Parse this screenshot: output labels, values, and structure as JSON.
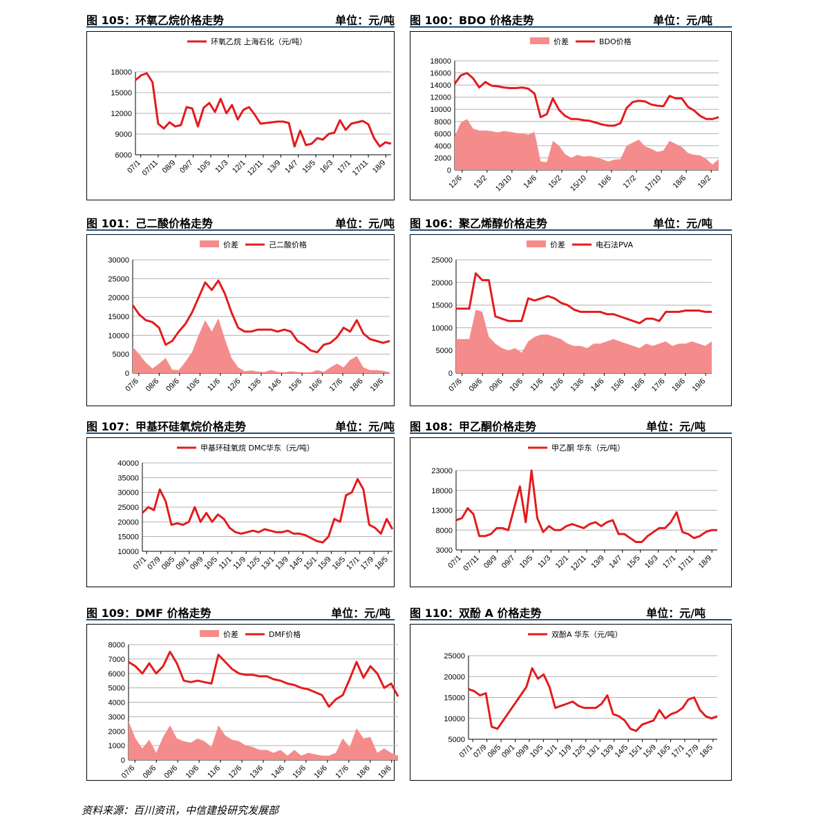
{
  "source": "资料来源：百川资讯，中信建投研究发展部",
  "colors": {
    "line": "#e41a1c",
    "area": "#f58c8c",
    "title_rule": "#1f4e79"
  },
  "panels": [
    {
      "id": "p105",
      "title": "图 105：环氧乙烷价格走势",
      "unit": "单位：元/吨",
      "chart_data": {
        "type": "line",
        "legend": [
          {
            "name": "环氧乙烷 上海石化（元/吨）",
            "kind": "line"
          }
        ],
        "ylim": [
          6000,
          18000
        ],
        "yticks": [
          6000,
          9000,
          12000,
          15000,
          18000
        ],
        "xlabels": [
          "07/1",
          "07/11",
          "08/9",
          "09/7",
          "10/5",
          "11/3",
          "12/1",
          "12/11",
          "13/9",
          "14/7",
          "15/5",
          "16/3",
          "17/1",
          "17/11",
          "18/9"
        ],
        "series": [
          {
            "name": "环氧乙烷 上海石化（元/吨）",
            "kind": "line",
            "values": [
              16800,
              17500,
              17800,
              16500,
              10500,
              9800,
              10700,
              10100,
              10300,
              12900,
              12700,
              10100,
              12800,
              13500,
              12200,
              14100,
              12000,
              13200,
              11100,
              12500,
              12900,
              11800,
              10500,
              10600,
              10700,
              10800,
              10800,
              10600,
              7200,
              9500,
              7400,
              7600,
              8400,
              8200,
              9000,
              9200,
              11000,
              9600,
              10500,
              10700,
              10900,
              10400,
              8400,
              7200,
              7800,
              7600
            ]
          }
        ]
      }
    },
    {
      "id": "p100",
      "title": "图 100：BDO 价格走势",
      "unit": "单位：元/吨",
      "chart_data": {
        "type": "area+line",
        "legend": [
          {
            "name": "价差",
            "kind": "area"
          },
          {
            "name": "BDO价格",
            "kind": "line"
          }
        ],
        "ylim": [
          0,
          18000
        ],
        "yticks": [
          0,
          2000,
          4000,
          6000,
          8000,
          10000,
          12000,
          14000,
          16000,
          18000
        ],
        "xlabels": [
          "12/6",
          "13/2",
          "13/10",
          "14/6",
          "15/2",
          "15/10",
          "16/6",
          "17/2",
          "17/10",
          "18/6",
          "19/2"
        ],
        "series": [
          {
            "name": "价差",
            "kind": "area",
            "values": [
              5600,
              7800,
              8400,
              6800,
              6500,
              6500,
              6400,
              6200,
              6400,
              6300,
              6100,
              6000,
              5800,
              6300,
              1400,
              1300,
              4800,
              4000,
              2600,
              2000,
              2500,
              2200,
              2300,
              2100,
              1800,
              1400,
              1700,
              1800,
              4000,
              4500,
              5000,
              3900,
              3500,
              3000,
              3200,
              4800,
              4300,
              3800,
              2800,
              2500,
              2400,
              1800,
              900,
              1800
            ]
          },
          {
            "name": "BDO价格",
            "kind": "line",
            "values": [
              14200,
              15600,
              16000,
              15100,
              13600,
              14500,
              13900,
              13800,
              13600,
              13500,
              13500,
              13600,
              13400,
              12600,
              8700,
              9200,
              11800,
              9900,
              8900,
              8400,
              8400,
              8200,
              8100,
              7800,
              7500,
              7300,
              7300,
              7700,
              10200,
              11200,
              11400,
              11300,
              10800,
              10600,
              10500,
              12200,
              11800,
              11800,
              10400,
              9800,
              8900,
              8400,
              8400,
              8700
            ]
          }
        ]
      }
    },
    {
      "id": "p101",
      "title": "图 101：己二酸价格走势",
      "unit": "单位：元/吨",
      "chart_data": {
        "type": "area+line",
        "legend": [
          {
            "name": "价差",
            "kind": "area"
          },
          {
            "name": "己二酸价格",
            "kind": "line"
          }
        ],
        "ylim": [
          0,
          30000
        ],
        "yticks": [
          0,
          5000,
          10000,
          15000,
          20000,
          25000,
          30000
        ],
        "xlabels": [
          "07/6",
          "08/6",
          "09/6",
          "10/6",
          "11/6",
          "12/6",
          "13/6",
          "14/6",
          "15/6",
          "16/6",
          "17/6",
          "18/6",
          "19/6"
        ],
        "series": [
          {
            "name": "价差",
            "kind": "area",
            "values": [
              7000,
              5000,
              2800,
              1200,
              2500,
              4000,
              900,
              800,
              3000,
              5500,
              10000,
              14000,
              11000,
              14500,
              9000,
              4000,
              1500,
              500,
              700,
              400,
              300,
              800,
              300,
              200,
              500,
              300,
              200,
              200,
              800,
              300,
              1500,
              2500,
              1500,
              3500,
              4500,
              1500,
              800,
              800,
              600,
              200
            ]
          },
          {
            "name": "己二酸价格",
            "kind": "line",
            "values": [
              18000,
              15500,
              14000,
              13500,
              12000,
              7500,
              8500,
              11000,
              13000,
              16000,
              20000,
              24000,
              22000,
              24500,
              21000,
              16000,
              12000,
              11000,
              11000,
              11500,
              11500,
              11500,
              11000,
              11500,
              11000,
              8500,
              7500,
              6000,
              5500,
              7500,
              8000,
              9500,
              12000,
              11000,
              14000,
              10500,
              9000,
              8500,
              8000,
              8500
            ]
          }
        ]
      }
    },
    {
      "id": "p106",
      "title": "图 106：聚乙烯醇价格走势",
      "unit": "单位：元/吨",
      "chart_data": {
        "type": "area+line",
        "legend": [
          {
            "name": "价差",
            "kind": "area"
          },
          {
            "name": "电石法PVA",
            "kind": "line"
          }
        ],
        "ylim": [
          0,
          25000
        ],
        "yticks": [
          0,
          5000,
          10000,
          15000,
          20000,
          25000
        ],
        "xlabels": [
          "07/6",
          "08/6",
          "09/6",
          "10/6",
          "11/6",
          "12/6",
          "13/6",
          "14/6",
          "15/6",
          "16/6",
          "17/6",
          "18/6",
          "19/6"
        ],
        "series": [
          {
            "name": "价差",
            "kind": "area",
            "values": [
              7500,
              7500,
              7500,
              14000,
              13500,
              8000,
              6500,
              5500,
              5000,
              5500,
              4500,
              7000,
              8000,
              8500,
              8500,
              8000,
              7500,
              6500,
              6000,
              6000,
              5500,
              6500,
              6500,
              7000,
              7500,
              7000,
              6500,
              6000,
              5500,
              6500,
              6000,
              6500,
              7000,
              6000,
              6500,
              6500,
              7000,
              6500,
              6000,
              7000
            ]
          },
          {
            "name": "电石法PVA",
            "kind": "line",
            "values": [
              14200,
              14200,
              14200,
              22000,
              20500,
              20500,
              12500,
              12000,
              11500,
              11500,
              11500,
              16500,
              16000,
              16500,
              17000,
              16500,
              15500,
              15000,
              14000,
              13500,
              13500,
              13500,
              13500,
              13000,
              13000,
              12500,
              12000,
              11500,
              11000,
              12000,
              12000,
              11500,
              13500,
              13500,
              13500,
              13800,
              13800,
              13800,
              13500,
              13500
            ]
          }
        ]
      }
    },
    {
      "id": "p107",
      "title": "图 107：甲基环硅氧烷价格走势",
      "unit": "单位：元/吨",
      "chart_data": {
        "type": "line",
        "legend": [
          {
            "name": "甲基环硅氧烷 DMC华东（元/吨）",
            "kind": "line"
          }
        ],
        "ylim": [
          10000,
          40000
        ],
        "yticks": [
          10000,
          15000,
          20000,
          25000,
          30000,
          35000,
          40000
        ],
        "xlabels": [
          "07/1",
          "07/9",
          "08/5",
          "09/1",
          "09/9",
          "10/5",
          "11/1",
          "11/9",
          "12/5",
          "13/1",
          "13/9",
          "14/5",
          "15/1",
          "15/9",
          "16/5",
          "17/1",
          "17/9",
          "18/5"
        ],
        "series": [
          {
            "name": "甲基环硅氧烷 DMC华东（元/吨）",
            "kind": "line",
            "values": [
              23000,
              25000,
              24000,
              31000,
              27000,
              19000,
              19500,
              19000,
              20000,
              25000,
              20000,
              23000,
              20000,
              22500,
              21000,
              18000,
              16500,
              16000,
              16500,
              17000,
              16500,
              17500,
              17000,
              16500,
              16500,
              17000,
              16000,
              16000,
              15500,
              14500,
              13500,
              13000,
              15000,
              21000,
              20000,
              29000,
              30000,
              34500,
              31000,
              19000,
              18000,
              16000,
              21000,
              17500
            ]
          }
        ]
      }
    },
    {
      "id": "p108",
      "title": "图 108：甲乙酮价格走势",
      "unit": "单位：元/吨",
      "chart_data": {
        "type": "line",
        "legend": [
          {
            "name": "甲乙酮 华东（元/吨）",
            "kind": "line"
          }
        ],
        "ylim": [
          3000,
          23000
        ],
        "yticks": [
          3000,
          8000,
          13000,
          18000,
          23000
        ],
        "xlabels": [
          "07/1",
          "07/11",
          "08/9",
          "09/7",
          "10/5",
          "11/3",
          "12/1",
          "12/11",
          "13/9",
          "14/7",
          "15/5",
          "16/3",
          "17/1",
          "17/11",
          "18/9"
        ],
        "series": [
          {
            "name": "甲乙酮 华东（元/吨）",
            "kind": "line",
            "values": [
              10500,
              11000,
              13500,
              12000,
              6500,
              6500,
              7000,
              8500,
              8500,
              8000,
              13500,
              19000,
              10000,
              23000,
              11000,
              7500,
              9000,
              8000,
              8000,
              9000,
              9500,
              9000,
              8500,
              9500,
              10000,
              9000,
              10000,
              10500,
              7000,
              7000,
              6000,
              5000,
              5000,
              6500,
              7500,
              8500,
              8500,
              10000,
              12500,
              7500,
              7000,
              6000,
              6500,
              7500,
              8000,
              8000
            ]
          }
        ]
      }
    },
    {
      "id": "p109",
      "title": "图 109：DMF 价格走势",
      "unit": "单位：元/吨",
      "chart_data": {
        "type": "area+line",
        "legend": [
          {
            "name": "价差",
            "kind": "area"
          },
          {
            "name": "DMF价格",
            "kind": "line"
          }
        ],
        "ylim": [
          0,
          8000
        ],
        "yticks": [
          0,
          1000,
          2000,
          3000,
          4000,
          5000,
          6000,
          7000,
          8000
        ],
        "xlabels": [
          "07/6",
          "08/6",
          "09/6",
          "10/6",
          "11/6",
          "12/6",
          "13/6",
          "14/6",
          "15/6",
          "16/6",
          "17/6",
          "18/6",
          "19/6"
        ],
        "series": [
          {
            "name": "价差",
            "kind": "area",
            "values": [
              2700,
              1500,
              800,
              1400,
              500,
              1600,
              2400,
              1500,
              1300,
              1200,
              1500,
              1300,
              900,
              2400,
              1700,
              1400,
              1300,
              1000,
              900,
              700,
              700,
              500,
              700,
              300,
              700,
              300,
              500,
              400,
              300,
              300,
              500,
              1500,
              900,
              2200,
              1500,
              1600,
              500,
              800,
              500,
              300
            ]
          },
          {
            "name": "DMF价格",
            "kind": "line",
            "values": [
              6800,
              6500,
              6000,
              6700,
              6000,
              6500,
              7500,
              6700,
              5500,
              5400,
              5500,
              5400,
              5300,
              7300,
              6800,
              6300,
              6000,
              5900,
              5900,
              5800,
              5800,
              5600,
              5500,
              5300,
              5200,
              5000,
              4900,
              4700,
              4500,
              3700,
              4200,
              4500,
              5600,
              6800,
              5700,
              6500,
              6000,
              5000,
              5300,
              4400
            ]
          }
        ]
      }
    },
    {
      "id": "p110",
      "title": "图 110：双酚 A 价格走势",
      "unit": "单位：元/吨",
      "chart_data": {
        "type": "line",
        "legend": [
          {
            "name": "双酚A 华东（元/吨）",
            "kind": "line"
          }
        ],
        "ylim": [
          5000,
          25000
        ],
        "yticks": [
          5000,
          10000,
          15000,
          20000,
          25000
        ],
        "xlabels": [
          "07/1",
          "07/9",
          "08/5",
          "09/1",
          "09/9",
          "10/5",
          "11/1",
          "11/9",
          "12/5",
          "13/1",
          "13/9",
          "14/5",
          "15/1",
          "15/9",
          "16/5",
          "17/1",
          "17/9",
          "18/5"
        ],
        "series": [
          {
            "name": "双酚A 华东（元/吨）",
            "kind": "line",
            "values": [
              17000,
              16500,
              15500,
              16000,
              8000,
              7500,
              9500,
              11500,
              13500,
              15500,
              17500,
              22000,
              19500,
              20500,
              17500,
              12500,
              13000,
              13500,
              14000,
              13000,
              12500,
              12500,
              12500,
              13500,
              15500,
              11000,
              10500,
              9500,
              7500,
              7000,
              8500,
              9000,
              9500,
              12000,
              10000,
              11000,
              11500,
              12500,
              14500,
              15000,
              12000,
              10500,
              10000,
              10500
            ]
          }
        ]
      }
    }
  ]
}
